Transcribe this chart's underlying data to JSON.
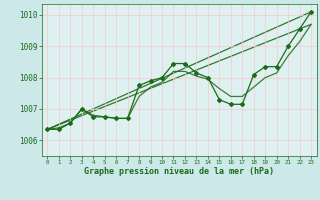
{
  "xlabel": "Graphe pression niveau de la mer (hPa)",
  "bg_color": "#cce8e8",
  "plot_bg_color": "#dff0f0",
  "grid_color": "#f5c8c8",
  "line_color": "#1a6b1a",
  "marker_color": "#1a6b1a",
  "ylim": [
    1005.5,
    1010.35
  ],
  "xlim": [
    -0.5,
    23.5
  ],
  "yticks": [
    1006,
    1007,
    1008,
    1009,
    1010
  ],
  "xticks": [
    0,
    1,
    2,
    3,
    4,
    5,
    6,
    7,
    8,
    9,
    10,
    11,
    12,
    13,
    14,
    15,
    16,
    17,
    18,
    19,
    20,
    21,
    22,
    23
  ],
  "series_main": {
    "x": [
      0,
      1,
      2,
      3,
      4,
      5,
      6,
      7,
      8,
      9,
      10,
      11,
      12,
      13,
      14,
      15,
      16,
      17,
      18,
      19,
      20,
      21,
      22,
      23
    ],
    "y": [
      1006.35,
      1006.35,
      1006.55,
      1007.0,
      1006.75,
      1006.75,
      1006.7,
      1006.7,
      1007.75,
      1007.9,
      1008.0,
      1008.45,
      1008.45,
      1008.15,
      1008.0,
      1007.3,
      1007.15,
      1007.15,
      1008.1,
      1008.35,
      1008.35,
      1009.0,
      1009.55,
      1010.1
    ]
  },
  "series_smooth": {
    "x": [
      0,
      1,
      2,
      3,
      4,
      5,
      6,
      7,
      8,
      9,
      10,
      11,
      12,
      13,
      14,
      15,
      16,
      17,
      18,
      19,
      20,
      21,
      22,
      23
    ],
    "y": [
      1006.35,
      1006.4,
      1006.55,
      1007.0,
      1006.8,
      1006.75,
      1006.7,
      1006.7,
      1007.4,
      1007.7,
      1007.85,
      1008.2,
      1008.2,
      1008.05,
      1007.95,
      1007.65,
      1007.4,
      1007.4,
      1007.7,
      1008.0,
      1008.15,
      1008.7,
      1009.15,
      1009.7
    ]
  },
  "trend1": {
    "x": [
      0,
      23
    ],
    "y": [
      1006.35,
      1009.7
    ]
  },
  "trend2": {
    "x": [
      0,
      23
    ],
    "y": [
      1006.35,
      1010.1
    ]
  }
}
